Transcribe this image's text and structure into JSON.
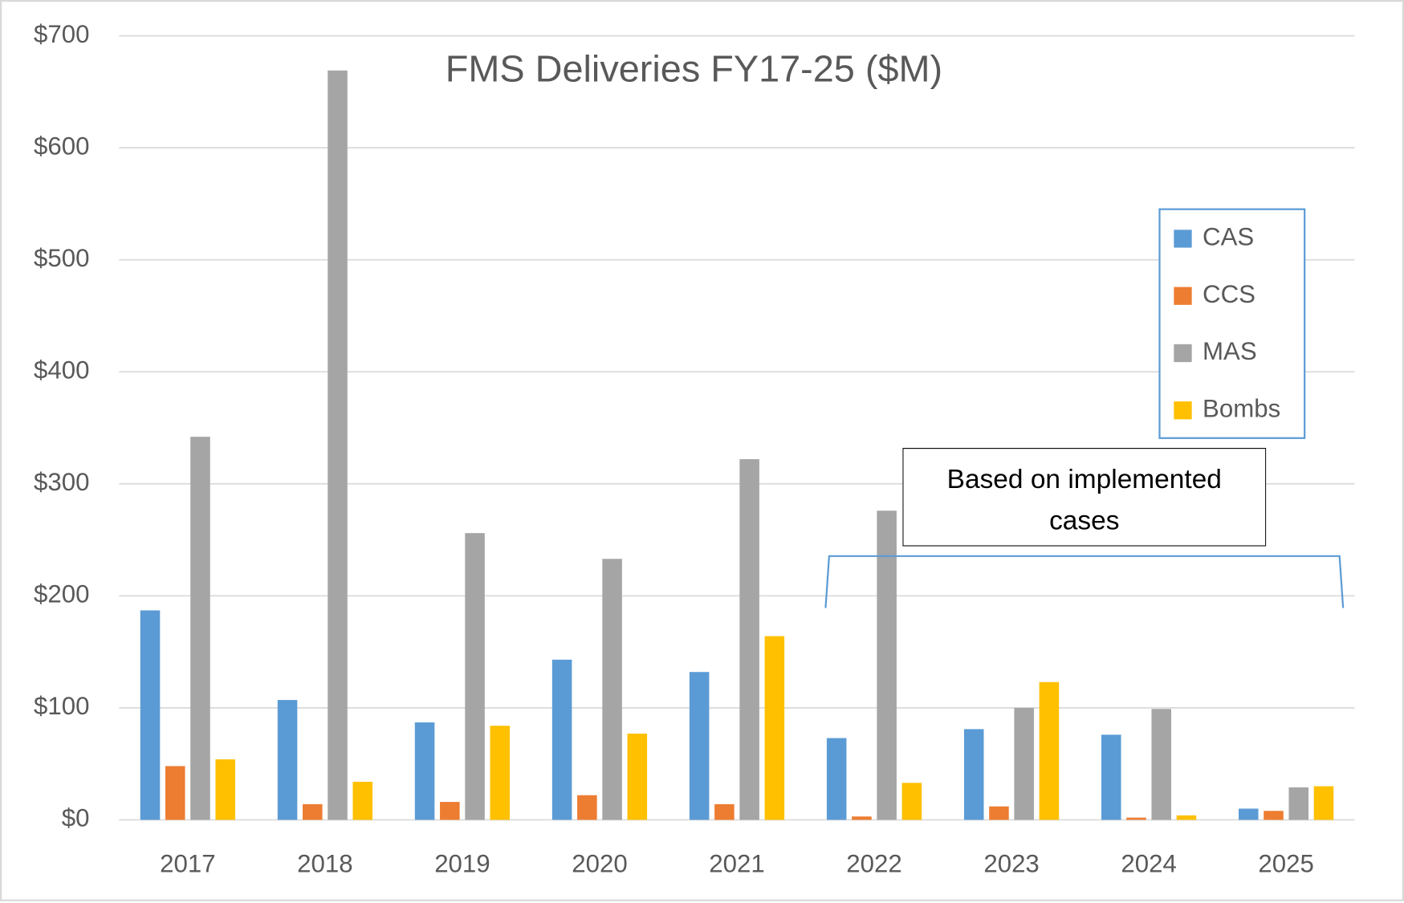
{
  "chart_data": {
    "type": "bar",
    "title": "FMS Deliveries FY17-25 ($M)",
    "categories": [
      "2017",
      "2018",
      "2019",
      "2020",
      "2021",
      "2022",
      "2023",
      "2024",
      "2025"
    ],
    "series": [
      {
        "name": "CAS",
        "color": "#5b9bd5",
        "values": [
          187,
          107,
          87,
          143,
          132,
          73,
          81,
          76,
          10
        ]
      },
      {
        "name": "CCS",
        "color": "#ed7d31",
        "values": [
          48,
          14,
          16,
          22,
          14,
          3,
          12,
          2,
          8
        ]
      },
      {
        "name": "MAS",
        "color": "#a5a5a5",
        "values": [
          342,
          669,
          256,
          233,
          322,
          276,
          100,
          99,
          29
        ]
      },
      {
        "name": "Bombs",
        "color": "#ffc000",
        "values": [
          54,
          34,
          84,
          77,
          164,
          33,
          123,
          4,
          30
        ]
      }
    ],
    "ylim": [
      0,
      700
    ],
    "yticks": [
      {
        "value": 0,
        "label": "$0"
      },
      {
        "value": 100,
        "label": "$100"
      },
      {
        "value": 200,
        "label": "$200"
      },
      {
        "value": 300,
        "label": "$300"
      },
      {
        "value": 400,
        "label": "$400"
      },
      {
        "value": 500,
        "label": "$500"
      },
      {
        "value": 600,
        "label": "$600"
      },
      {
        "value": 700,
        "label": "$700"
      }
    ],
    "grid": true,
    "legend": "right",
    "annotations": [
      "Based on implemented cases"
    ]
  }
}
